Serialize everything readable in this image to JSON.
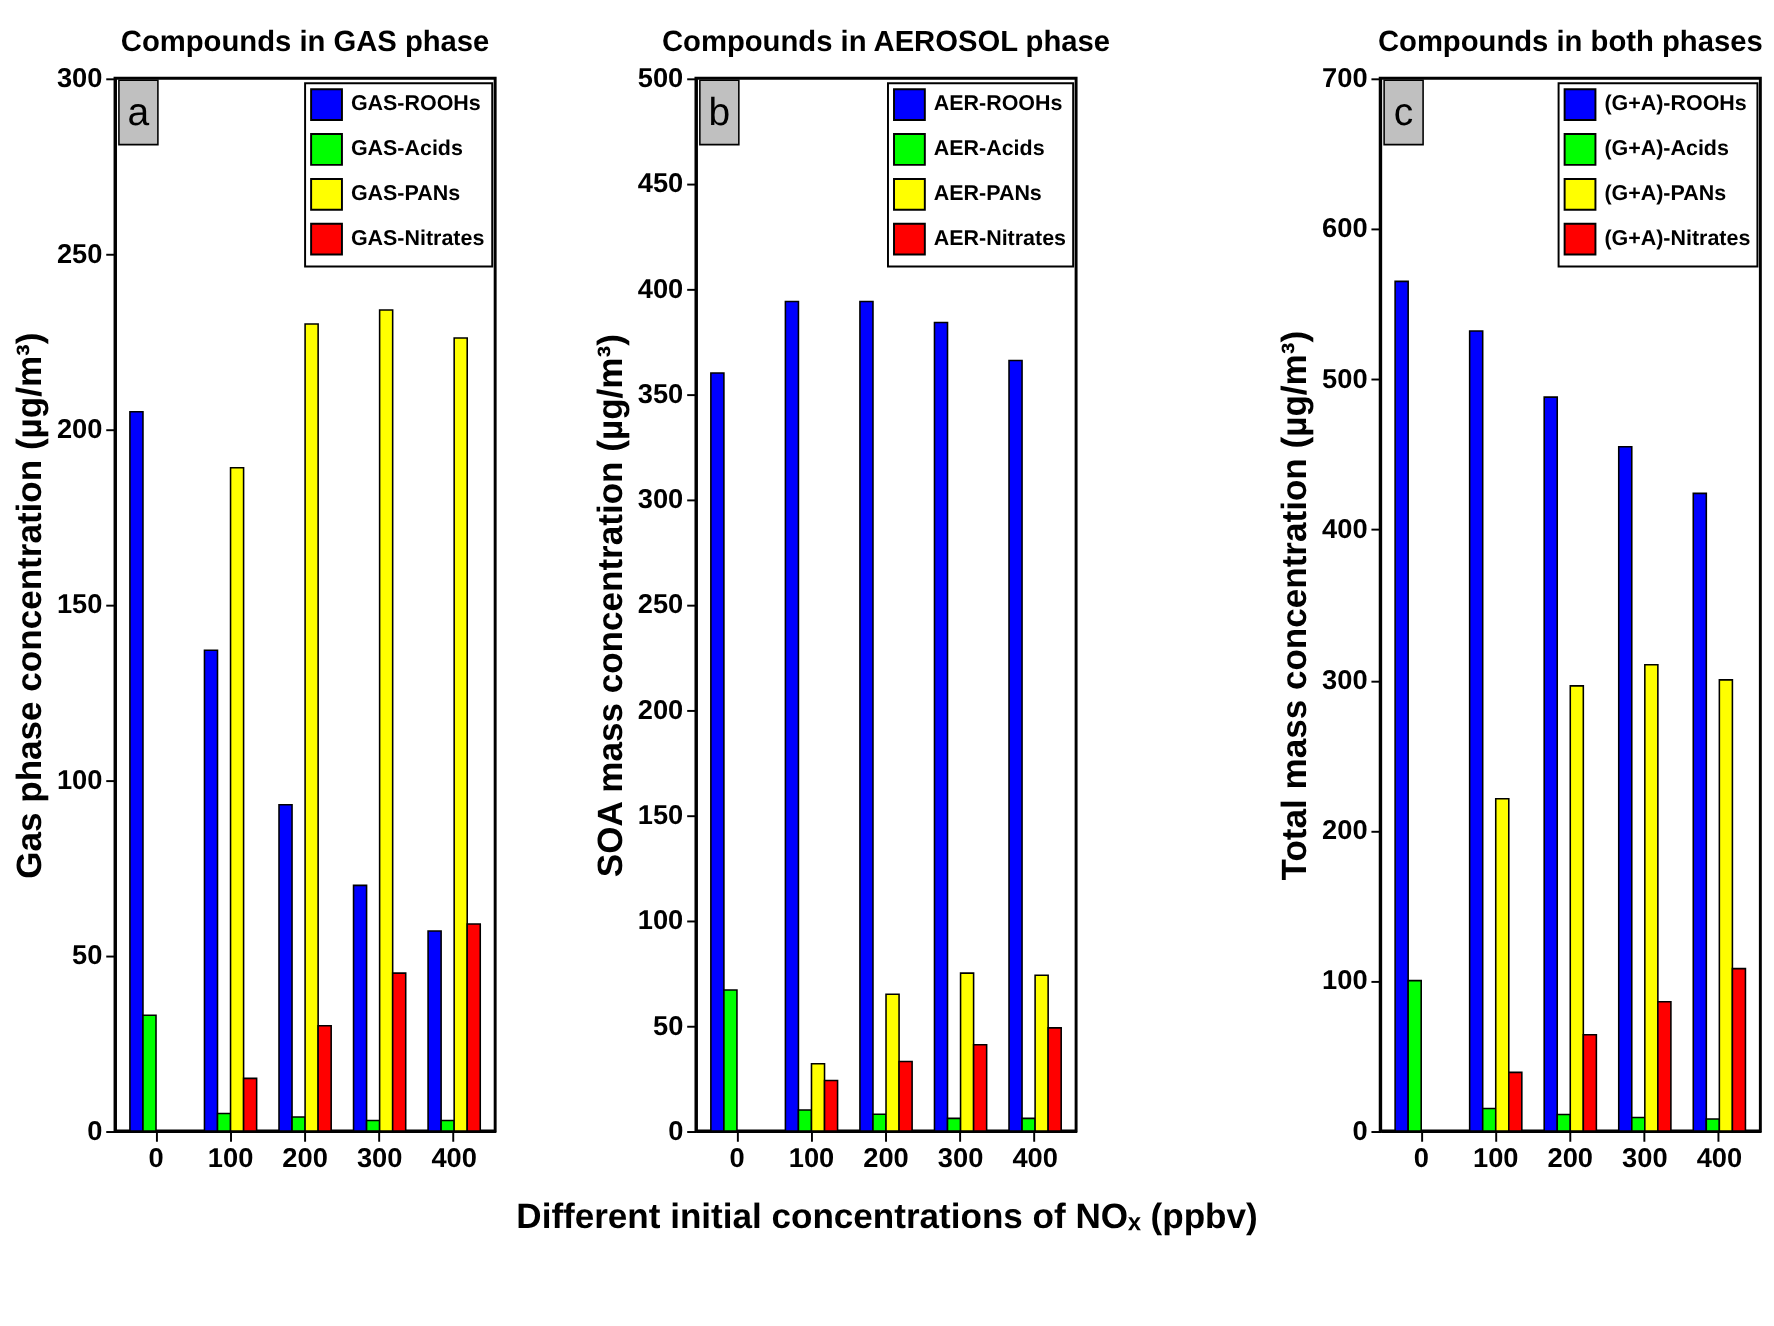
{
  "chart_data": [
    {
      "type": "bar",
      "title": "Compounds in GAS phase",
      "ylabel": "Gas phase concentration (µg/m³)",
      "categories": [
        "0",
        "100",
        "200",
        "300",
        "400"
      ],
      "annotations": [
        "a"
      ],
      "ylim": [
        0,
        300
      ],
      "yticks": [
        0,
        50,
        100,
        150,
        200,
        250,
        300
      ],
      "grid": false,
      "legend": "top right",
      "series": [
        {
          "name": "GAS-ROOHs",
          "color": "#0000ff",
          "values": [
            205,
            137,
            93,
            70,
            57
          ]
        },
        {
          "name": "GAS-Acids",
          "color": "#00ff00",
          "values": [
            33,
            5,
            4,
            3,
            3
          ]
        },
        {
          "name": "GAS-PANs",
          "color": "#ffff00",
          "values": [
            null,
            189,
            230,
            234,
            226
          ]
        },
        {
          "name": "GAS-Nitrates",
          "color": "#ff0000",
          "values": [
            null,
            15,
            30,
            45,
            59
          ]
        }
      ]
    },
    {
      "type": "bar",
      "title": "Compounds in AEROSOL phase",
      "ylabel": "SOA mass concentration (µg/m³)",
      "xlabel": "Different initial concentrations of NOₓ (ppbv)",
      "categories": [
        "0",
        "100",
        "200",
        "300",
        "400"
      ],
      "annotations": [
        "b"
      ],
      "ylim": [
        0,
        500
      ],
      "yticks": [
        0,
        50,
        100,
        150,
        200,
        250,
        300,
        350,
        400,
        450,
        500
      ],
      "grid": false,
      "legend": "top right",
      "series": [
        {
          "name": "AER-ROOHs",
          "color": "#0000ff",
          "values": [
            360,
            394,
            394,
            384,
            366
          ]
        },
        {
          "name": "AER-Acids",
          "color": "#00ff00",
          "values": [
            67,
            10,
            8,
            6,
            6
          ]
        },
        {
          "name": "AER-PANs",
          "color": "#ffff00",
          "values": [
            null,
            32,
            65,
            75,
            74
          ]
        },
        {
          "name": "AER-Nitrates",
          "color": "#ff0000",
          "values": [
            null,
            24,
            33,
            41,
            49
          ]
        }
      ]
    },
    {
      "type": "bar",
      "title": "Compounds in both phases",
      "ylabel": "Total mass concentration (µg/m³)",
      "categories": [
        "0",
        "100",
        "200",
        "300",
        "400"
      ],
      "annotations": [
        "c"
      ],
      "ylim": [
        0,
        700
      ],
      "yticks": [
        0,
        100,
        200,
        300,
        400,
        500,
        600,
        700
      ],
      "grid": false,
      "legend": "top right",
      "series": [
        {
          "name": "(G+A)-ROOHs",
          "color": "#0000ff",
          "values": [
            565,
            532,
            488,
            455,
            424
          ]
        },
        {
          "name": "(G+A)-Acids",
          "color": "#00ff00",
          "values": [
            100,
            15,
            11,
            9,
            8
          ]
        },
        {
          "name": "(G+A)-PANs",
          "color": "#ffff00",
          "values": [
            null,
            221,
            296,
            310,
            300
          ]
        },
        {
          "name": "(G+A)-Nitrates",
          "color": "#ff0000",
          "values": [
            null,
            39,
            64,
            86,
            108
          ]
        }
      ]
    }
  ]
}
